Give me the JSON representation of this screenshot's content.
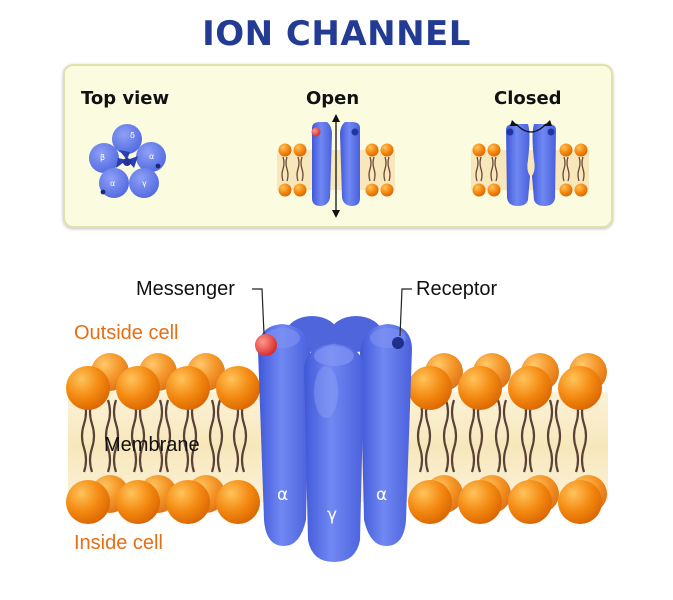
{
  "title": "ION CHANNEL",
  "panel": {
    "top_view": "Top view",
    "open": "Open",
    "closed": "Closed",
    "subunits": {
      "delta": "δ",
      "beta": "β",
      "alpha": "α",
      "gamma": "γ"
    }
  },
  "labels": {
    "messenger": "Messenger",
    "receptor": "Receptor",
    "outside": "Outside cell",
    "membrane": "Membrane",
    "inside": "Inside cell"
  },
  "channel_subunits": {
    "left": "α",
    "center": "γ",
    "right": "α"
  },
  "colors": {
    "title": "#233b93",
    "protein": "#5c75e8",
    "lipid_head": "#f08a10",
    "outside_label": "#e66f14",
    "messenger": "#e23c3c",
    "panel_bg": "#fbfbe0"
  }
}
